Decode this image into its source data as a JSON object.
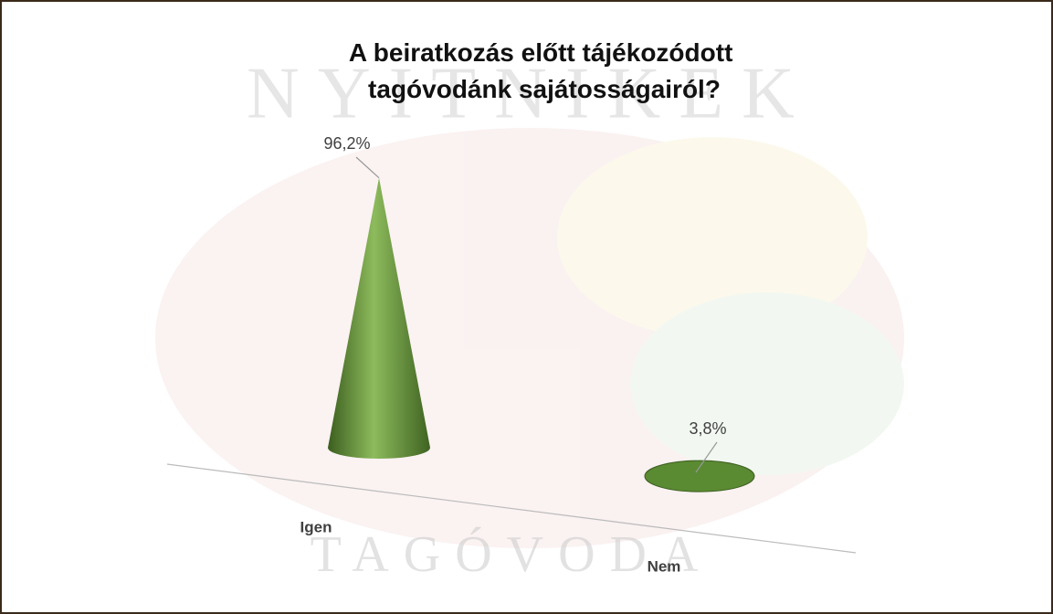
{
  "chart_data": {
    "type": "cone3d",
    "title": "A beiratkozás előtt tájékozódott tagóvodánk sajátosságairól?",
    "categories": [
      "Igen",
      "Nem"
    ],
    "values": [
      96.2,
      3.8
    ],
    "value_labels": [
      "96,2%",
      "3,8%"
    ],
    "color": "#5a8a32",
    "watermark": [
      "NYITNIKEK",
      "TAGÓVODA"
    ]
  }
}
